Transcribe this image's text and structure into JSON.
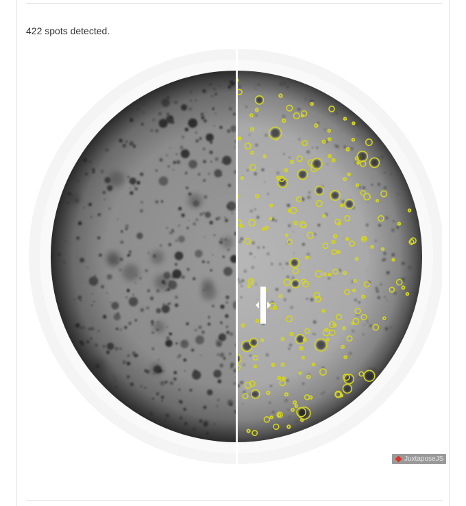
{
  "caption": "422 spots detected.",
  "credit": {
    "label": "JuxtaposeJS"
  },
  "colors": {
    "spot_outline": "#d4d421",
    "well_rim": "#f3f3f3",
    "divider": "#ffffff"
  },
  "slider": {
    "position_percent": 50
  }
}
